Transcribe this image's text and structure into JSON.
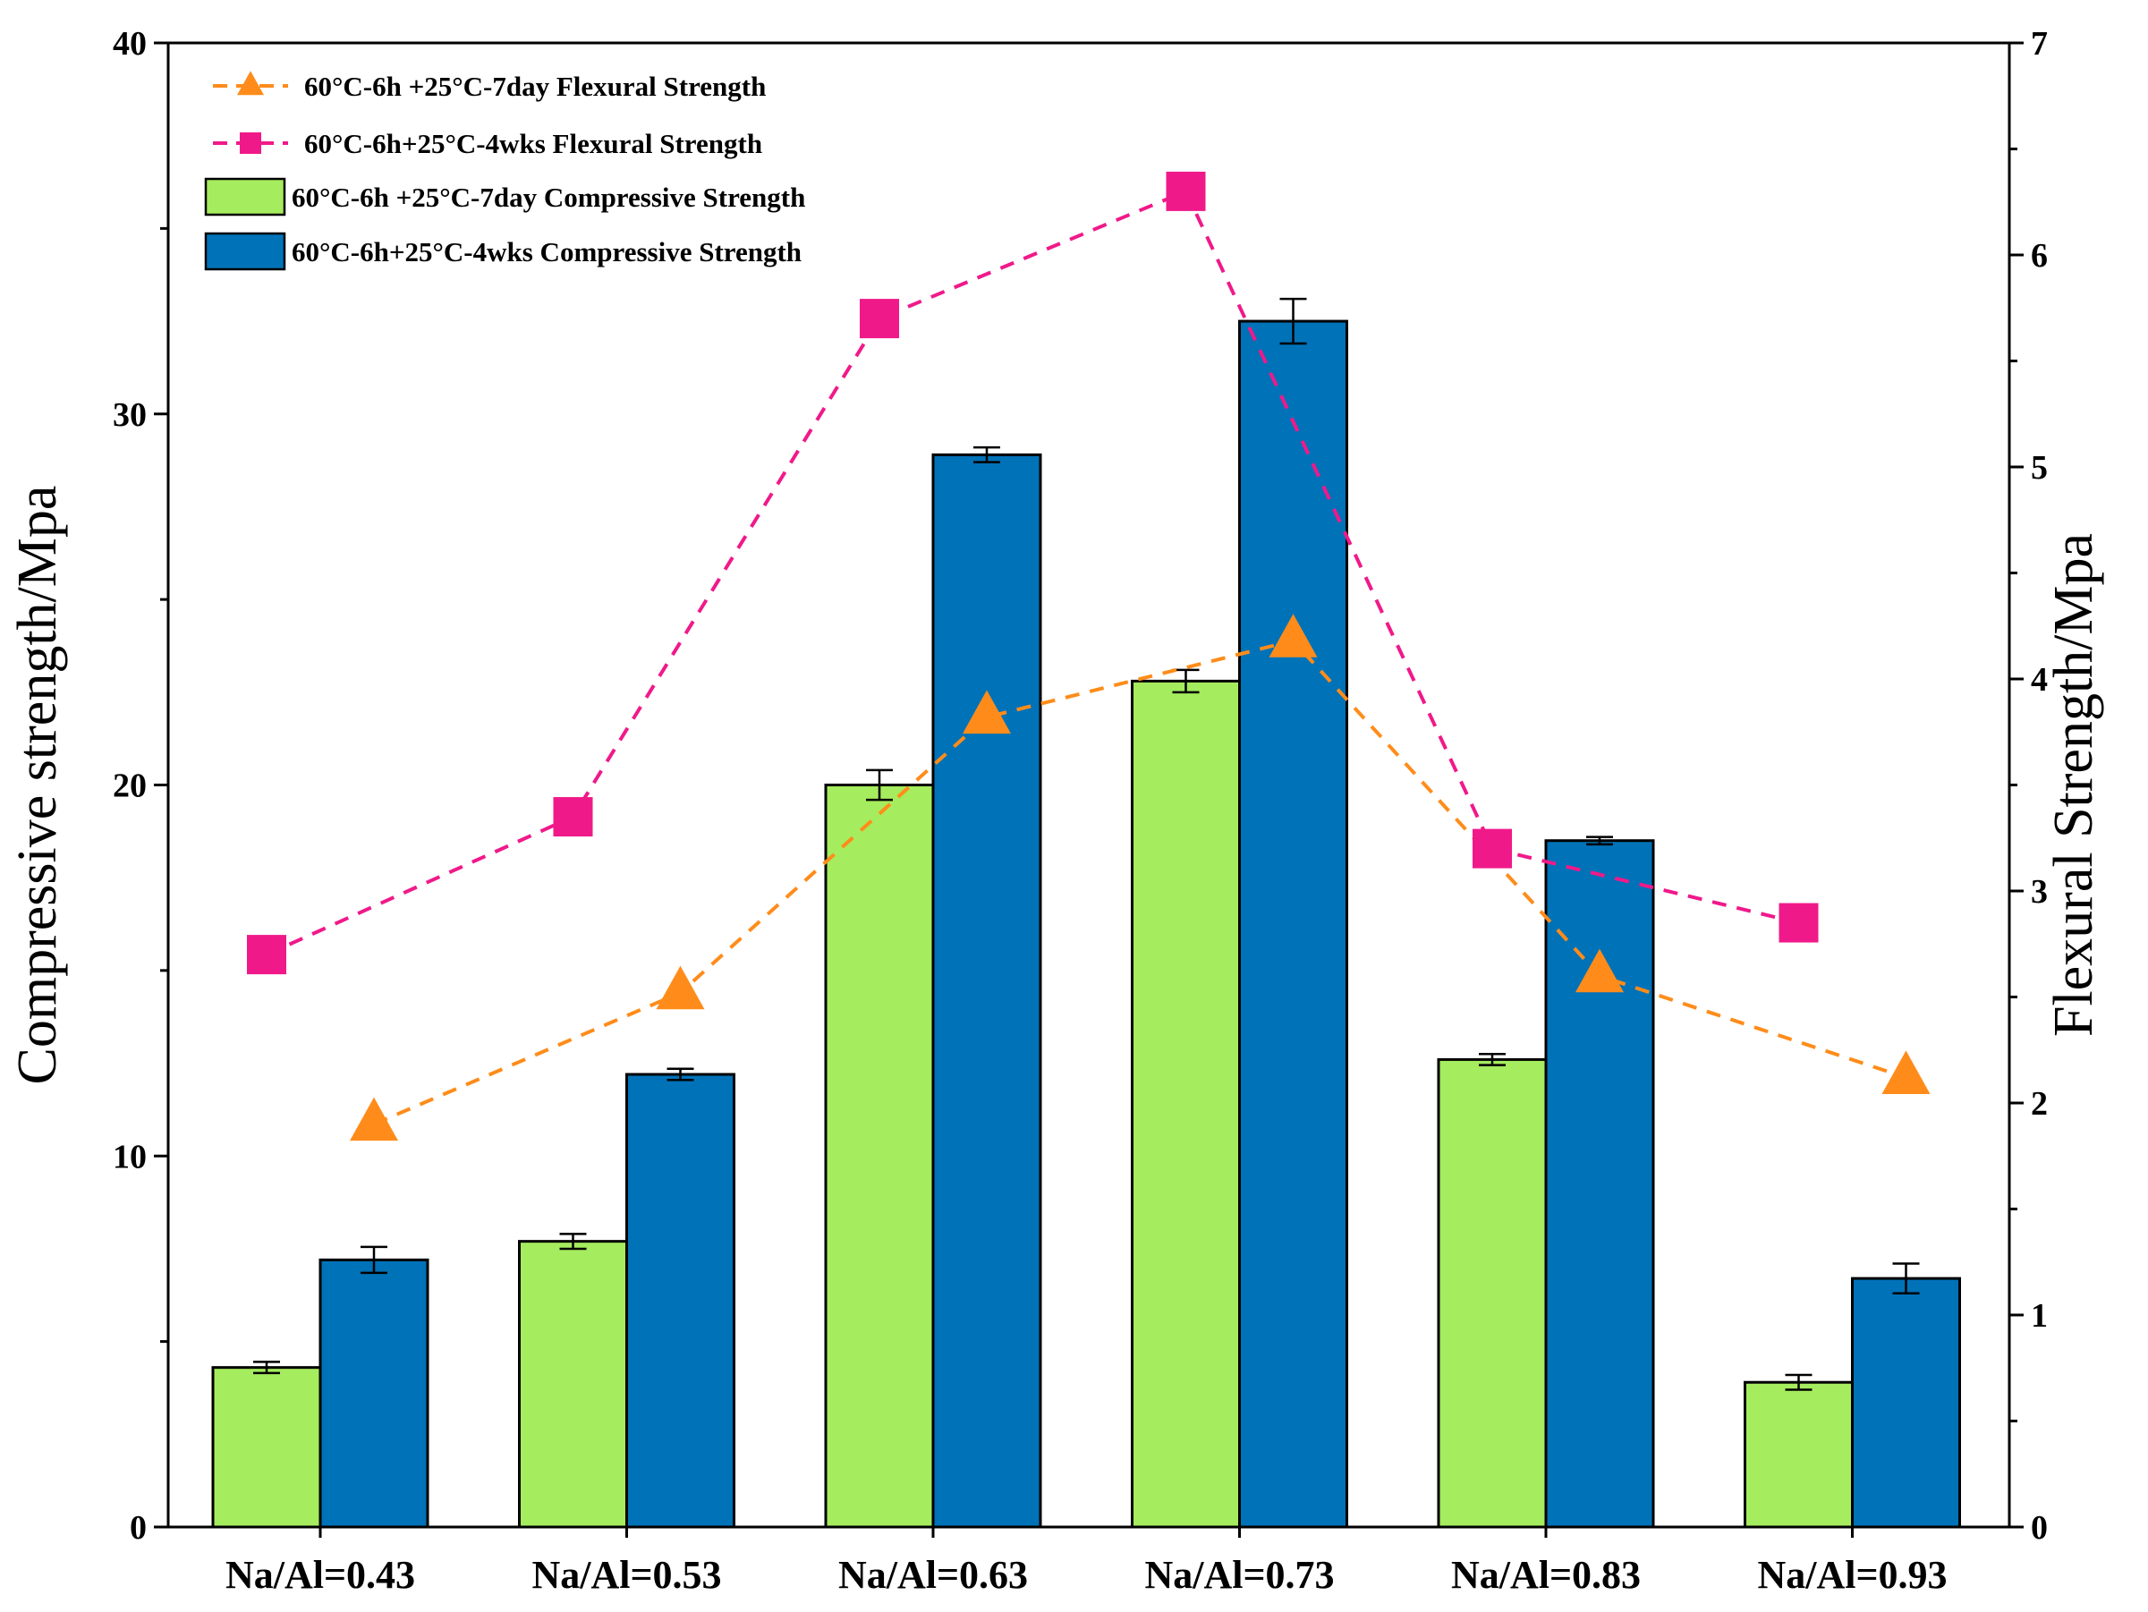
{
  "chart_data": {
    "type": "bar",
    "categories": [
      "Na/Al=0.43",
      "Na/Al=0.53",
      "Na/Al=0.63",
      "Na/Al=0.73",
      "Na/Al=0.83",
      "Na/Al=0.93"
    ],
    "ylabel": "Compressive strength/Mpa",
    "y2label": "Flexural Strength/Mpa",
    "ylim": [
      0,
      40
    ],
    "y2lim": [
      0,
      7
    ],
    "yticks": [
      0,
      10,
      20,
      30,
      40
    ],
    "y2ticks": [
      0,
      1,
      2,
      3,
      4,
      5,
      6,
      7
    ],
    "bar_series": [
      {
        "name": "60°C-6h +25°C-7day Compressive Strength",
        "color": "#a5ec5e",
        "values": [
          4.3,
          7.7,
          20.0,
          22.8,
          12.6,
          3.9
        ],
        "errors": [
          0.15,
          0.2,
          0.4,
          0.3,
          0.15,
          0.2
        ]
      },
      {
        "name": "60°C-6h+25°C-4wks Compressive Strength",
        "color": "#0072b8",
        "values": [
          7.2,
          12.2,
          28.9,
          32.5,
          18.5,
          6.7
        ],
        "errors": [
          0.35,
          0.15,
          0.2,
          0.6,
          0.1,
          0.4
        ]
      }
    ],
    "line_series": [
      {
        "name": "60°C-6h +25°C-7day Flexural Strength",
        "color": "#ff8c1a",
        "marker": "triangle",
        "axis": "right",
        "values": [
          1.9,
          2.52,
          3.82,
          4.18,
          2.6,
          2.12
        ]
      },
      {
        "name": "60°C-6h+25°C-4wks Flexural Strength",
        "color": "#f0198a",
        "marker": "square",
        "axis": "right",
        "values": [
          2.7,
          3.35,
          5.7,
          6.3,
          3.2,
          2.85
        ]
      }
    ]
  }
}
